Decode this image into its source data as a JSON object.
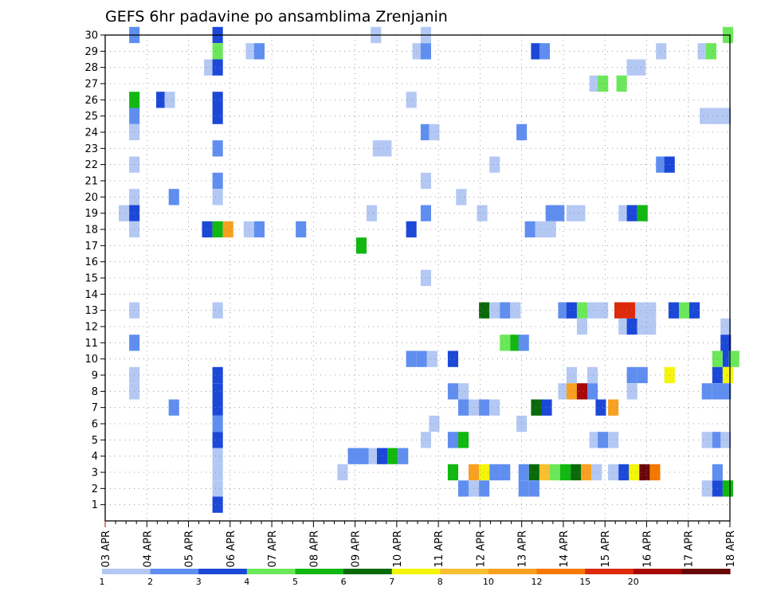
{
  "chart_data": {
    "type": "heatmap",
    "title": "GEFS 6hr padavine po ansamblima Zrenjanin",
    "x_tick_labels": [
      "03 APR",
      "04 APR",
      "05 APR",
      "06 APR",
      "07 APR",
      "08 APR",
      "09 APR",
      "10 APR",
      "11 APR",
      "12 APR",
      "13 APR",
      "14 APR",
      "15 APR",
      "16 APR",
      "17 APR",
      "18 APR"
    ],
    "y_tick_labels": [
      "1",
      "2",
      "3",
      "4",
      "5",
      "6",
      "7",
      "8",
      "9",
      "10",
      "11",
      "12",
      "13",
      "14",
      "15",
      "16",
      "17",
      "18",
      "19",
      "20",
      "21",
      "22",
      "23",
      "24",
      "25",
      "26",
      "27",
      "28",
      "29",
      "30"
    ],
    "x_range_days": [
      0,
      15
    ],
    "y_range": [
      0,
      30
    ],
    "grid": true,
    "colorbar": {
      "labels": [
        "1",
        "2",
        "3",
        "4",
        "5",
        "6",
        "7",
        "8",
        "10",
        "12",
        "15",
        "20"
      ],
      "colors": [
        "#b4c8f4",
        "#5f8ef0",
        "#1c48d8",
        "#6be85a",
        "#10b810",
        "#0a6a0a",
        "#f5f50a",
        "#f8c030",
        "#f8a020",
        "#f57800",
        "#dc2a0a",
        "#a80808",
        "#6a0606"
      ]
    },
    "cells": [
      [
        0.7,
        30,
        1
      ],
      [
        2.7,
        30,
        2
      ],
      [
        6.5,
        30,
        0
      ],
      [
        7.7,
        30,
        0
      ],
      [
        14.95,
        30,
        3
      ],
      [
        2.7,
        29,
        3
      ],
      [
        3.5,
        29,
        0
      ],
      [
        3.7,
        29,
        1
      ],
      [
        7.5,
        29,
        0
      ],
      [
        7.7,
        29,
        1
      ],
      [
        10.35,
        29,
        2
      ],
      [
        10.55,
        29,
        1
      ],
      [
        13.35,
        29,
        0
      ],
      [
        14.35,
        29,
        0
      ],
      [
        14.55,
        29,
        3
      ],
      [
        2.5,
        28,
        0
      ],
      [
        2.7,
        28,
        2
      ],
      [
        12.65,
        28,
        0
      ],
      [
        12.85,
        28,
        0
      ],
      [
        11.75,
        27,
        0
      ],
      [
        11.95,
        27,
        3
      ],
      [
        12.4,
        27,
        3
      ],
      [
        0.7,
        26,
        4
      ],
      [
        1.35,
        26,
        2
      ],
      [
        1.55,
        26,
        0
      ],
      [
        2.7,
        26,
        2
      ],
      [
        7.35,
        26,
        0
      ],
      [
        0.7,
        25,
        1
      ],
      [
        2.7,
        25,
        2
      ],
      [
        14.4,
        25,
        0
      ],
      [
        14.65,
        25,
        0
      ],
      [
        14.9,
        25,
        0
      ],
      [
        0.7,
        24,
        0
      ],
      [
        7.7,
        24,
        1
      ],
      [
        7.9,
        24,
        0
      ],
      [
        10.0,
        24,
        1
      ],
      [
        2.7,
        23,
        1
      ],
      [
        6.55,
        23,
        0
      ],
      [
        6.75,
        23,
        0
      ],
      [
        0.7,
        22,
        0
      ],
      [
        9.35,
        22,
        0
      ],
      [
        13.35,
        22,
        1
      ],
      [
        13.55,
        22,
        2
      ],
      [
        2.7,
        21,
        1
      ],
      [
        7.7,
        21,
        0
      ],
      [
        0.7,
        20,
        0
      ],
      [
        1.65,
        20,
        1
      ],
      [
        2.7,
        20,
        0
      ],
      [
        8.55,
        20,
        0
      ],
      [
        0.45,
        19,
        0
      ],
      [
        0.7,
        19,
        2
      ],
      [
        6.4,
        19,
        0
      ],
      [
        7.7,
        19,
        1
      ],
      [
        9.05,
        19,
        0
      ],
      [
        10.7,
        19,
        1
      ],
      [
        10.9,
        19,
        1
      ],
      [
        11.2,
        19,
        0
      ],
      [
        11.4,
        19,
        0
      ],
      [
        12.45,
        19,
        0
      ],
      [
        12.65,
        19,
        2
      ],
      [
        12.9,
        19,
        4
      ],
      [
        0.7,
        18,
        0
      ],
      [
        2.45,
        18,
        2
      ],
      [
        2.7,
        18,
        4
      ],
      [
        2.95,
        18,
        8
      ],
      [
        3.45,
        18,
        0
      ],
      [
        3.7,
        18,
        1
      ],
      [
        4.7,
        18,
        1
      ],
      [
        7.35,
        18,
        2
      ],
      [
        10.2,
        18,
        1
      ],
      [
        10.45,
        18,
        0
      ],
      [
        10.7,
        18,
        0
      ],
      [
        6.15,
        17,
        4
      ],
      [
        7.7,
        15,
        0
      ],
      [
        0.7,
        13,
        0
      ],
      [
        2.7,
        13,
        0
      ],
      [
        9.1,
        13,
        5
      ],
      [
        9.35,
        13,
        0
      ],
      [
        9.6,
        13,
        1
      ],
      [
        9.85,
        13,
        0
      ],
      [
        11.0,
        13,
        1
      ],
      [
        11.2,
        13,
        2
      ],
      [
        11.45,
        13,
        3
      ],
      [
        11.7,
        13,
        0
      ],
      [
        11.95,
        13,
        0
      ],
      [
        12.35,
        13,
        10
      ],
      [
        12.6,
        13,
        10
      ],
      [
        12.85,
        13,
        0
      ],
      [
        13.1,
        13,
        0
      ],
      [
        13.65,
        13,
        2
      ],
      [
        13.9,
        13,
        3
      ],
      [
        14.15,
        13,
        2
      ],
      [
        11.45,
        12,
        0
      ],
      [
        12.45,
        12,
        0
      ],
      [
        12.65,
        12,
        2
      ],
      [
        12.9,
        12,
        0
      ],
      [
        13.1,
        12,
        0
      ],
      [
        14.9,
        12,
        0
      ],
      [
        9.6,
        11,
        3
      ],
      [
        9.85,
        11,
        4
      ],
      [
        10.05,
        11,
        1
      ],
      [
        14.9,
        11,
        2
      ],
      [
        0.7,
        11,
        1
      ],
      [
        7.35,
        10,
        1
      ],
      [
        7.6,
        10,
        1
      ],
      [
        7.85,
        10,
        0
      ],
      [
        8.35,
        10,
        2
      ],
      [
        14.7,
        10,
        3
      ],
      [
        14.95,
        10,
        2
      ],
      [
        15.1,
        10,
        3
      ],
      [
        0.7,
        9,
        0
      ],
      [
        2.7,
        9,
        2
      ],
      [
        11.2,
        9,
        0
      ],
      [
        11.7,
        9,
        0
      ],
      [
        12.65,
        9,
        1
      ],
      [
        12.9,
        9,
        1
      ],
      [
        13.55,
        9,
        6
      ],
      [
        14.7,
        9,
        2
      ],
      [
        14.95,
        9,
        6
      ],
      [
        0.7,
        8,
        0
      ],
      [
        2.7,
        8,
        2
      ],
      [
        8.35,
        8,
        1
      ],
      [
        8.6,
        8,
        0
      ],
      [
        11.0,
        8,
        0
      ],
      [
        11.2,
        8,
        8
      ],
      [
        11.45,
        8,
        11
      ],
      [
        11.7,
        8,
        1
      ],
      [
        12.65,
        8,
        0
      ],
      [
        14.45,
        8,
        1
      ],
      [
        14.7,
        8,
        1
      ],
      [
        14.9,
        8,
        1
      ],
      [
        1.65,
        7,
        1
      ],
      [
        2.7,
        7,
        2
      ],
      [
        8.6,
        7,
        1
      ],
      [
        8.85,
        7,
        0
      ],
      [
        9.1,
        7,
        1
      ],
      [
        9.35,
        7,
        0
      ],
      [
        10.35,
        7,
        5
      ],
      [
        10.6,
        7,
        2
      ],
      [
        11.9,
        7,
        2
      ],
      [
        12.2,
        7,
        8
      ],
      [
        2.7,
        6,
        1
      ],
      [
        7.9,
        6,
        0
      ],
      [
        10.0,
        6,
        0
      ],
      [
        2.7,
        5,
        2
      ],
      [
        7.7,
        5,
        0
      ],
      [
        8.35,
        5,
        1
      ],
      [
        8.6,
        5,
        4
      ],
      [
        11.75,
        5,
        0
      ],
      [
        11.95,
        5,
        1
      ],
      [
        12.2,
        5,
        0
      ],
      [
        14.45,
        5,
        0
      ],
      [
        14.7,
        5,
        1
      ],
      [
        14.9,
        5,
        0
      ],
      [
        2.7,
        4,
        0
      ],
      [
        5.95,
        4,
        1
      ],
      [
        6.2,
        4,
        1
      ],
      [
        6.45,
        4,
        0
      ],
      [
        6.65,
        4,
        2
      ],
      [
        6.9,
        4,
        4
      ],
      [
        7.15,
        4,
        1
      ],
      [
        2.7,
        3,
        0
      ],
      [
        5.7,
        3,
        0
      ],
      [
        8.35,
        3,
        4
      ],
      [
        8.85,
        3,
        8
      ],
      [
        9.1,
        3,
        6
      ],
      [
        9.35,
        3,
        1
      ],
      [
        9.6,
        3,
        1
      ],
      [
        10.05,
        3,
        1
      ],
      [
        10.3,
        3,
        5
      ],
      [
        10.55,
        3,
        7
      ],
      [
        10.8,
        3,
        3
      ],
      [
        11.05,
        3,
        4
      ],
      [
        11.3,
        3,
        5
      ],
      [
        11.55,
        3,
        8
      ],
      [
        11.8,
        3,
        0
      ],
      [
        12.2,
        3,
        0
      ],
      [
        12.45,
        3,
        2
      ],
      [
        12.7,
        3,
        6
      ],
      [
        12.95,
        3,
        12
      ],
      [
        13.2,
        3,
        9
      ],
      [
        14.7,
        3,
        1
      ],
      [
        2.7,
        2,
        0
      ],
      [
        8.6,
        2,
        1
      ],
      [
        8.85,
        2,
        0
      ],
      [
        9.1,
        2,
        1
      ],
      [
        10.05,
        2,
        1
      ],
      [
        10.3,
        2,
        1
      ],
      [
        14.45,
        2,
        0
      ],
      [
        14.7,
        2,
        2
      ],
      [
        14.95,
        2,
        4
      ],
      [
        2.7,
        1,
        2
      ]
    ]
  }
}
